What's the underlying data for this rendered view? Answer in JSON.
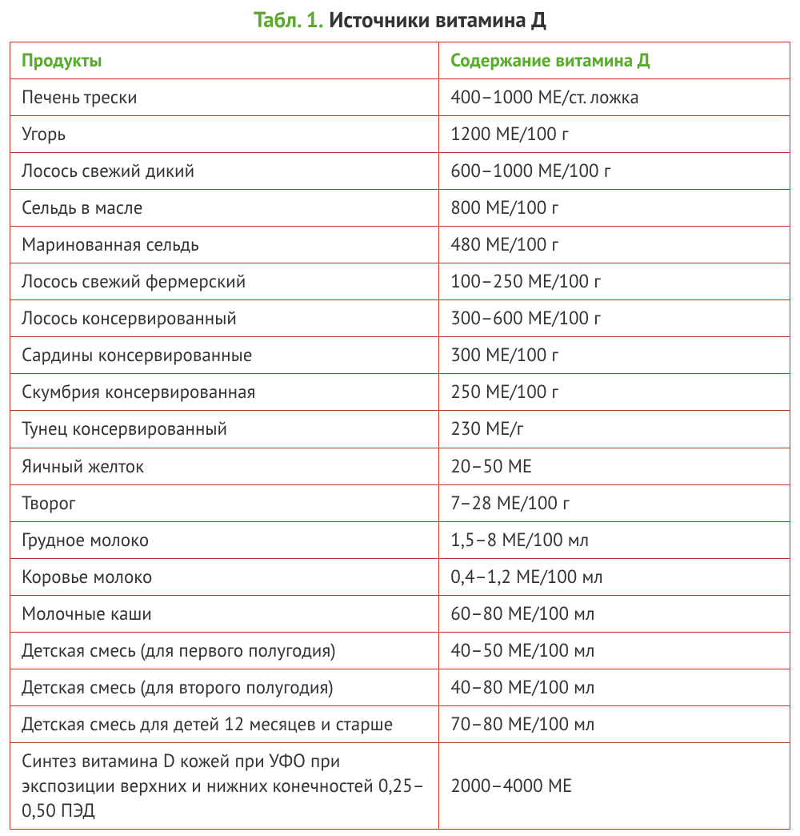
{
  "title": {
    "prefix": "Табл. 1.",
    "text": "Источники витамина Д"
  },
  "table": {
    "columns": [
      "Продукты",
      "Содержание витамина Д"
    ],
    "rows": [
      [
        "Печень трески",
        "400–1000 МЕ/ст. ложка"
      ],
      [
        "Угорь",
        "1200 МЕ/100 г"
      ],
      [
        "Лосось свежий дикий",
        "600–1000 МЕ/100 г"
      ],
      [
        "Сельдь в масле",
        "800 МЕ/100 г"
      ],
      [
        "Маринованная сельдь",
        "480 МЕ/100 г"
      ],
      [
        "Лосось свежий фермерский",
        "100–250 МЕ/100 г"
      ],
      [
        "Лосось консервированный",
        "300–600 МЕ/100 г"
      ],
      [
        "Сардины консервированные",
        "300 МЕ/100 г"
      ],
      [
        "Скумбрия консервированная",
        "250 МЕ/100 г"
      ],
      [
        "Тунец консервированный",
        "230 МЕ/г"
      ],
      [
        "Яичный желток",
        "20–50 МЕ"
      ],
      [
        "Творог",
        "7–28 МЕ/100 г"
      ],
      [
        "Грудное молоко",
        "1,5–8 МЕ/100 мл"
      ],
      [
        "Коровье молоко",
        "0,4–1,2 МЕ/100 мл"
      ],
      [
        "Молочные каши",
        "60–80 МЕ/100 мл"
      ],
      [
        "Детская смесь (для первого полугодия)",
        "40–50 МЕ/100 мл"
      ],
      [
        "Детская смесь (для второго полугодия)",
        "40–80 МЕ/100 мл"
      ],
      [
        "Детская смесь для детей 12 месяцев и старше",
        "70–80 МЕ/100 мл"
      ],
      [
        "Синтез витамина D кожей при УФО при экспозиции верхних и нижних конечностей 0,25–0,50 ПЭД",
        "2000–4000 МЕ"
      ]
    ],
    "border_color": "#b53a1e",
    "header_color": "#5aaa2f",
    "text_color": "#333333",
    "background_color": "#ffffff",
    "font_size": 23,
    "column_widths": [
      "55%",
      "45%"
    ]
  }
}
